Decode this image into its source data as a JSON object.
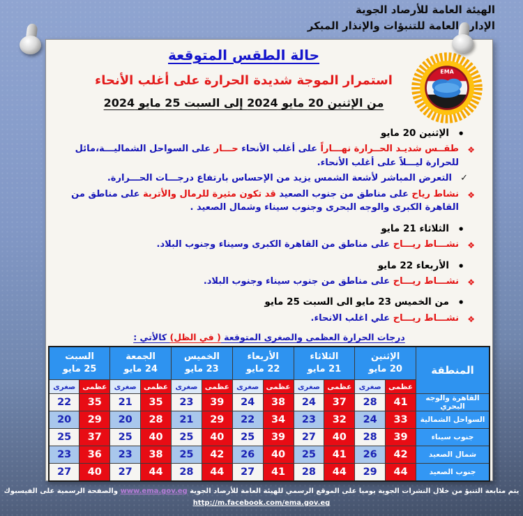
{
  "org": {
    "line1": "الهيئة العامة للأرصاد الجوية",
    "line2": "الإدارة العامة للتنبؤات والإنذار المبكر"
  },
  "title": {
    "heading": "حالة الطقس المتوقعة",
    "subheading": "استمرار الموجة شديدة الحرارة على أغلب الأنحاء",
    "period": "من الإثنين 20 مايو 2024 إلى  السبت 25 مايو 2024"
  },
  "logo": {
    "label": "EMA"
  },
  "forecast": {
    "items": [
      {
        "type": "day",
        "text": "الإثنين 20 مايو"
      },
      {
        "type": "item",
        "segments": [
          {
            "color": "red",
            "text": "طقــس شديـد الحــرارة نهـــاراً "
          },
          {
            "color": "blue",
            "text": "على أغلب الأنحاء "
          },
          {
            "color": "red",
            "text": "حـــار "
          },
          {
            "color": "blue",
            "text": "على السواحل الشماليـــة،مائل للحرارة ليـــلاً على أغلب الأنحاء."
          }
        ]
      },
      {
        "type": "check",
        "segments": [
          {
            "color": "blue",
            "text": "التعرض المباشر لأشعة الشمس يزيد من الإحساس بارتفاع درجـــات الحـــرارة."
          }
        ]
      },
      {
        "type": "item",
        "segments": [
          {
            "color": "red",
            "text": "نشاط رياح "
          },
          {
            "color": "blue",
            "text": "على مناطق من جنوب الصعيد "
          },
          {
            "color": "red",
            "text": "قد تكون مثيرة للرمال والأتربة "
          },
          {
            "color": "blue",
            "text": "على مناطق من القاهرة الكبرى والوجه البحرى وجنوب سيناء وشمال الصعيد ."
          }
        ]
      },
      {
        "type": "day",
        "text": "الثلاثاء 21 مايو"
      },
      {
        "type": "item",
        "segments": [
          {
            "color": "red",
            "text": "نشـــاط ريـــاح "
          },
          {
            "color": "blue",
            "text": "على مناطق من القاهرة الكبرى وسيناء وجنوب البلاد."
          }
        ]
      },
      {
        "type": "day",
        "text": "الأربعاء 22 مايو"
      },
      {
        "type": "item",
        "segments": [
          {
            "color": "red",
            "text": "نشـــاط ريـــاح "
          },
          {
            "color": "blue",
            "text": "على مناطق من جنوب سيناء وجنوب البلاد."
          }
        ]
      },
      {
        "type": "day",
        "text": "من الخميس 23 مايو الى السبت 25 مايو"
      },
      {
        "type": "item",
        "segments": [
          {
            "color": "red",
            "text": "نشـــاط ريـــاح "
          },
          {
            "color": "blue",
            "text": "علي اغلب الانحاء."
          }
        ]
      }
    ]
  },
  "table_intro": {
    "segments": [
      {
        "color": "blue",
        "text": "درجات الحرارة العظمى والصغرى المتوقعة "
      },
      {
        "color": "red",
        "text": "( في الظل)"
      },
      {
        "color": "blue",
        "text": " كالأتي :"
      }
    ]
  },
  "table": {
    "region_header": "المنطقة",
    "max_label": "عظمى",
    "min_label": "صغرى",
    "days": [
      {
        "name": "الإثنين",
        "date": "20 مايو"
      },
      {
        "name": "الثلاثاء",
        "date": "21 مايو"
      },
      {
        "name": "الأربعاء",
        "date": "22 مايو"
      },
      {
        "name": "الخميس",
        "date": "23 مايو"
      },
      {
        "name": "الجمعة",
        "date": "24 مايو"
      },
      {
        "name": "السبت",
        "date": "25 مايو"
      }
    ],
    "rows": [
      {
        "region": "القاهرة والوجه البحري",
        "temps": [
          [
            41,
            28
          ],
          [
            37,
            24
          ],
          [
            38,
            24
          ],
          [
            39,
            23
          ],
          [
            35,
            21
          ],
          [
            35,
            22
          ]
        ]
      },
      {
        "region": "السواحل الشمالية",
        "temps": [
          [
            33,
            24
          ],
          [
            32,
            23
          ],
          [
            34,
            22
          ],
          [
            29,
            21
          ],
          [
            28,
            20
          ],
          [
            29,
            20
          ]
        ]
      },
      {
        "region": "جنوب سيناء",
        "temps": [
          [
            39,
            28
          ],
          [
            40,
            27
          ],
          [
            39,
            25
          ],
          [
            40,
            25
          ],
          [
            40,
            25
          ],
          [
            37,
            25
          ]
        ]
      },
      {
        "region": "شمال الصعيد",
        "temps": [
          [
            42,
            26
          ],
          [
            41,
            25
          ],
          [
            40,
            26
          ],
          [
            42,
            25
          ],
          [
            38,
            23
          ],
          [
            36,
            23
          ]
        ]
      },
      {
        "region": "جنوب الصعيد",
        "temps": [
          [
            44,
            29
          ],
          [
            44,
            28
          ],
          [
            41,
            27
          ],
          [
            44,
            28
          ],
          [
            44,
            27
          ],
          [
            40,
            27
          ]
        ]
      }
    ]
  },
  "footer": {
    "line1_before": "يتم متابعة التنبؤ من خلال النشرات الجوية يوميا على الموقع الرسمي للهيئة العامة للأرصاد الجوية ",
    "site_link": "www.ema.gov.eg",
    "line1_after": " والصفحة الرسمية على الفيسبوك",
    "facebook_link": "http://m.facebook.com/ema.gov.eg"
  },
  "colors": {
    "header_blue": "#2e93f0",
    "max_red": "#e80c14",
    "min_row_light": "#f6f5f2",
    "min_row_shade": "#a9c7ec",
    "text_blue": "#1616b8",
    "text_red": "#e31212"
  }
}
